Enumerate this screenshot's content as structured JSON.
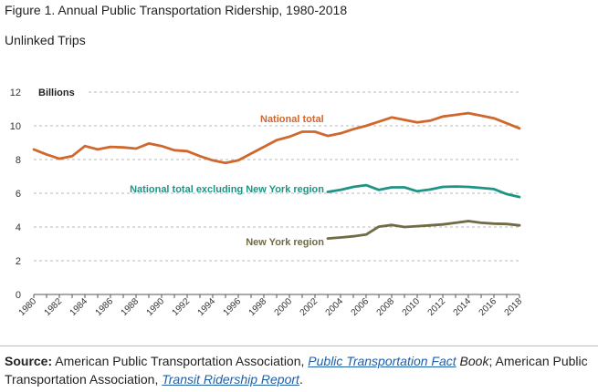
{
  "figure": {
    "title": "Figure 1. Annual Public Transportation Ridership, 1980-2018",
    "subtitle": "Unlinked Trips"
  },
  "source": {
    "label": "Source:",
    "publisher_1": "American Public Transportation Association,",
    "link_1_text": "Public Transportation Fact",
    "link_1_suffix": "Book",
    "separator": ";",
    "publisher_2": "American Public Transportation Association,",
    "link_2_text": "Transit Ridership Report",
    "end": "."
  },
  "colors": {
    "national_total": "#d0672c",
    "national_excl_ny": "#1e9484",
    "ny_region": "#706a45",
    "grid": "#b8b8b8",
    "axis": "#555555"
  },
  "chart_data": {
    "type": "line",
    "title": "",
    "xlabel": "",
    "ylabel": "Billions",
    "xlim": [
      1980,
      2018
    ],
    "ylim": [
      0,
      12
    ],
    "y_ticks": [
      0,
      2,
      4,
      6,
      8,
      10,
      12
    ],
    "x_ticks": [
      1980,
      1982,
      1984,
      1986,
      1988,
      1990,
      1992,
      1994,
      1996,
      1998,
      2000,
      2002,
      2004,
      2006,
      2008,
      2010,
      2012,
      2014,
      2016,
      2018
    ],
    "grid": "horizontal dashed",
    "series": [
      {
        "name": "National total",
        "color": "#d0672c",
        "x": [
          1980,
          1981,
          1982,
          1983,
          1984,
          1985,
          1986,
          1987,
          1988,
          1989,
          1990,
          1991,
          1992,
          1993,
          1994,
          1995,
          1996,
          1997,
          1998,
          1999,
          2000,
          2001,
          2002,
          2003,
          2004,
          2005,
          2006,
          2007,
          2008,
          2009,
          2010,
          2011,
          2012,
          2013,
          2014,
          2015,
          2016,
          2017,
          2018
        ],
        "y": [
          8.6,
          8.3,
          8.05,
          8.2,
          8.8,
          8.6,
          8.75,
          8.72,
          8.65,
          8.95,
          8.8,
          8.55,
          8.5,
          8.2,
          7.95,
          7.8,
          7.95,
          8.35,
          8.75,
          9.15,
          9.35,
          9.65,
          9.65,
          9.4,
          9.55,
          9.8,
          10.0,
          10.25,
          10.5,
          10.35,
          10.2,
          10.3,
          10.55,
          10.65,
          10.75,
          10.6,
          10.45,
          10.15,
          9.85
        ]
      },
      {
        "name": "National total excluding New York region",
        "color": "#1e9484",
        "x": [
          2003,
          2004,
          2005,
          2006,
          2007,
          2008,
          2009,
          2010,
          2011,
          2012,
          2013,
          2014,
          2015,
          2016,
          2017,
          2018
        ],
        "y": [
          6.08,
          6.2,
          6.38,
          6.48,
          6.2,
          6.35,
          6.35,
          6.12,
          6.22,
          6.38,
          6.4,
          6.38,
          6.32,
          6.25,
          5.95,
          5.78
        ]
      },
      {
        "name": "New York region",
        "color": "#706a45",
        "x": [
          2003,
          2004,
          2005,
          2006,
          2007,
          2008,
          2009,
          2010,
          2011,
          2012,
          2013,
          2014,
          2015,
          2016,
          2017,
          2018
        ],
        "y": [
          3.32,
          3.38,
          3.45,
          3.55,
          4.02,
          4.12,
          4.0,
          4.05,
          4.1,
          4.15,
          4.25,
          4.35,
          4.25,
          4.2,
          4.18,
          4.1
        ]
      }
    ]
  }
}
